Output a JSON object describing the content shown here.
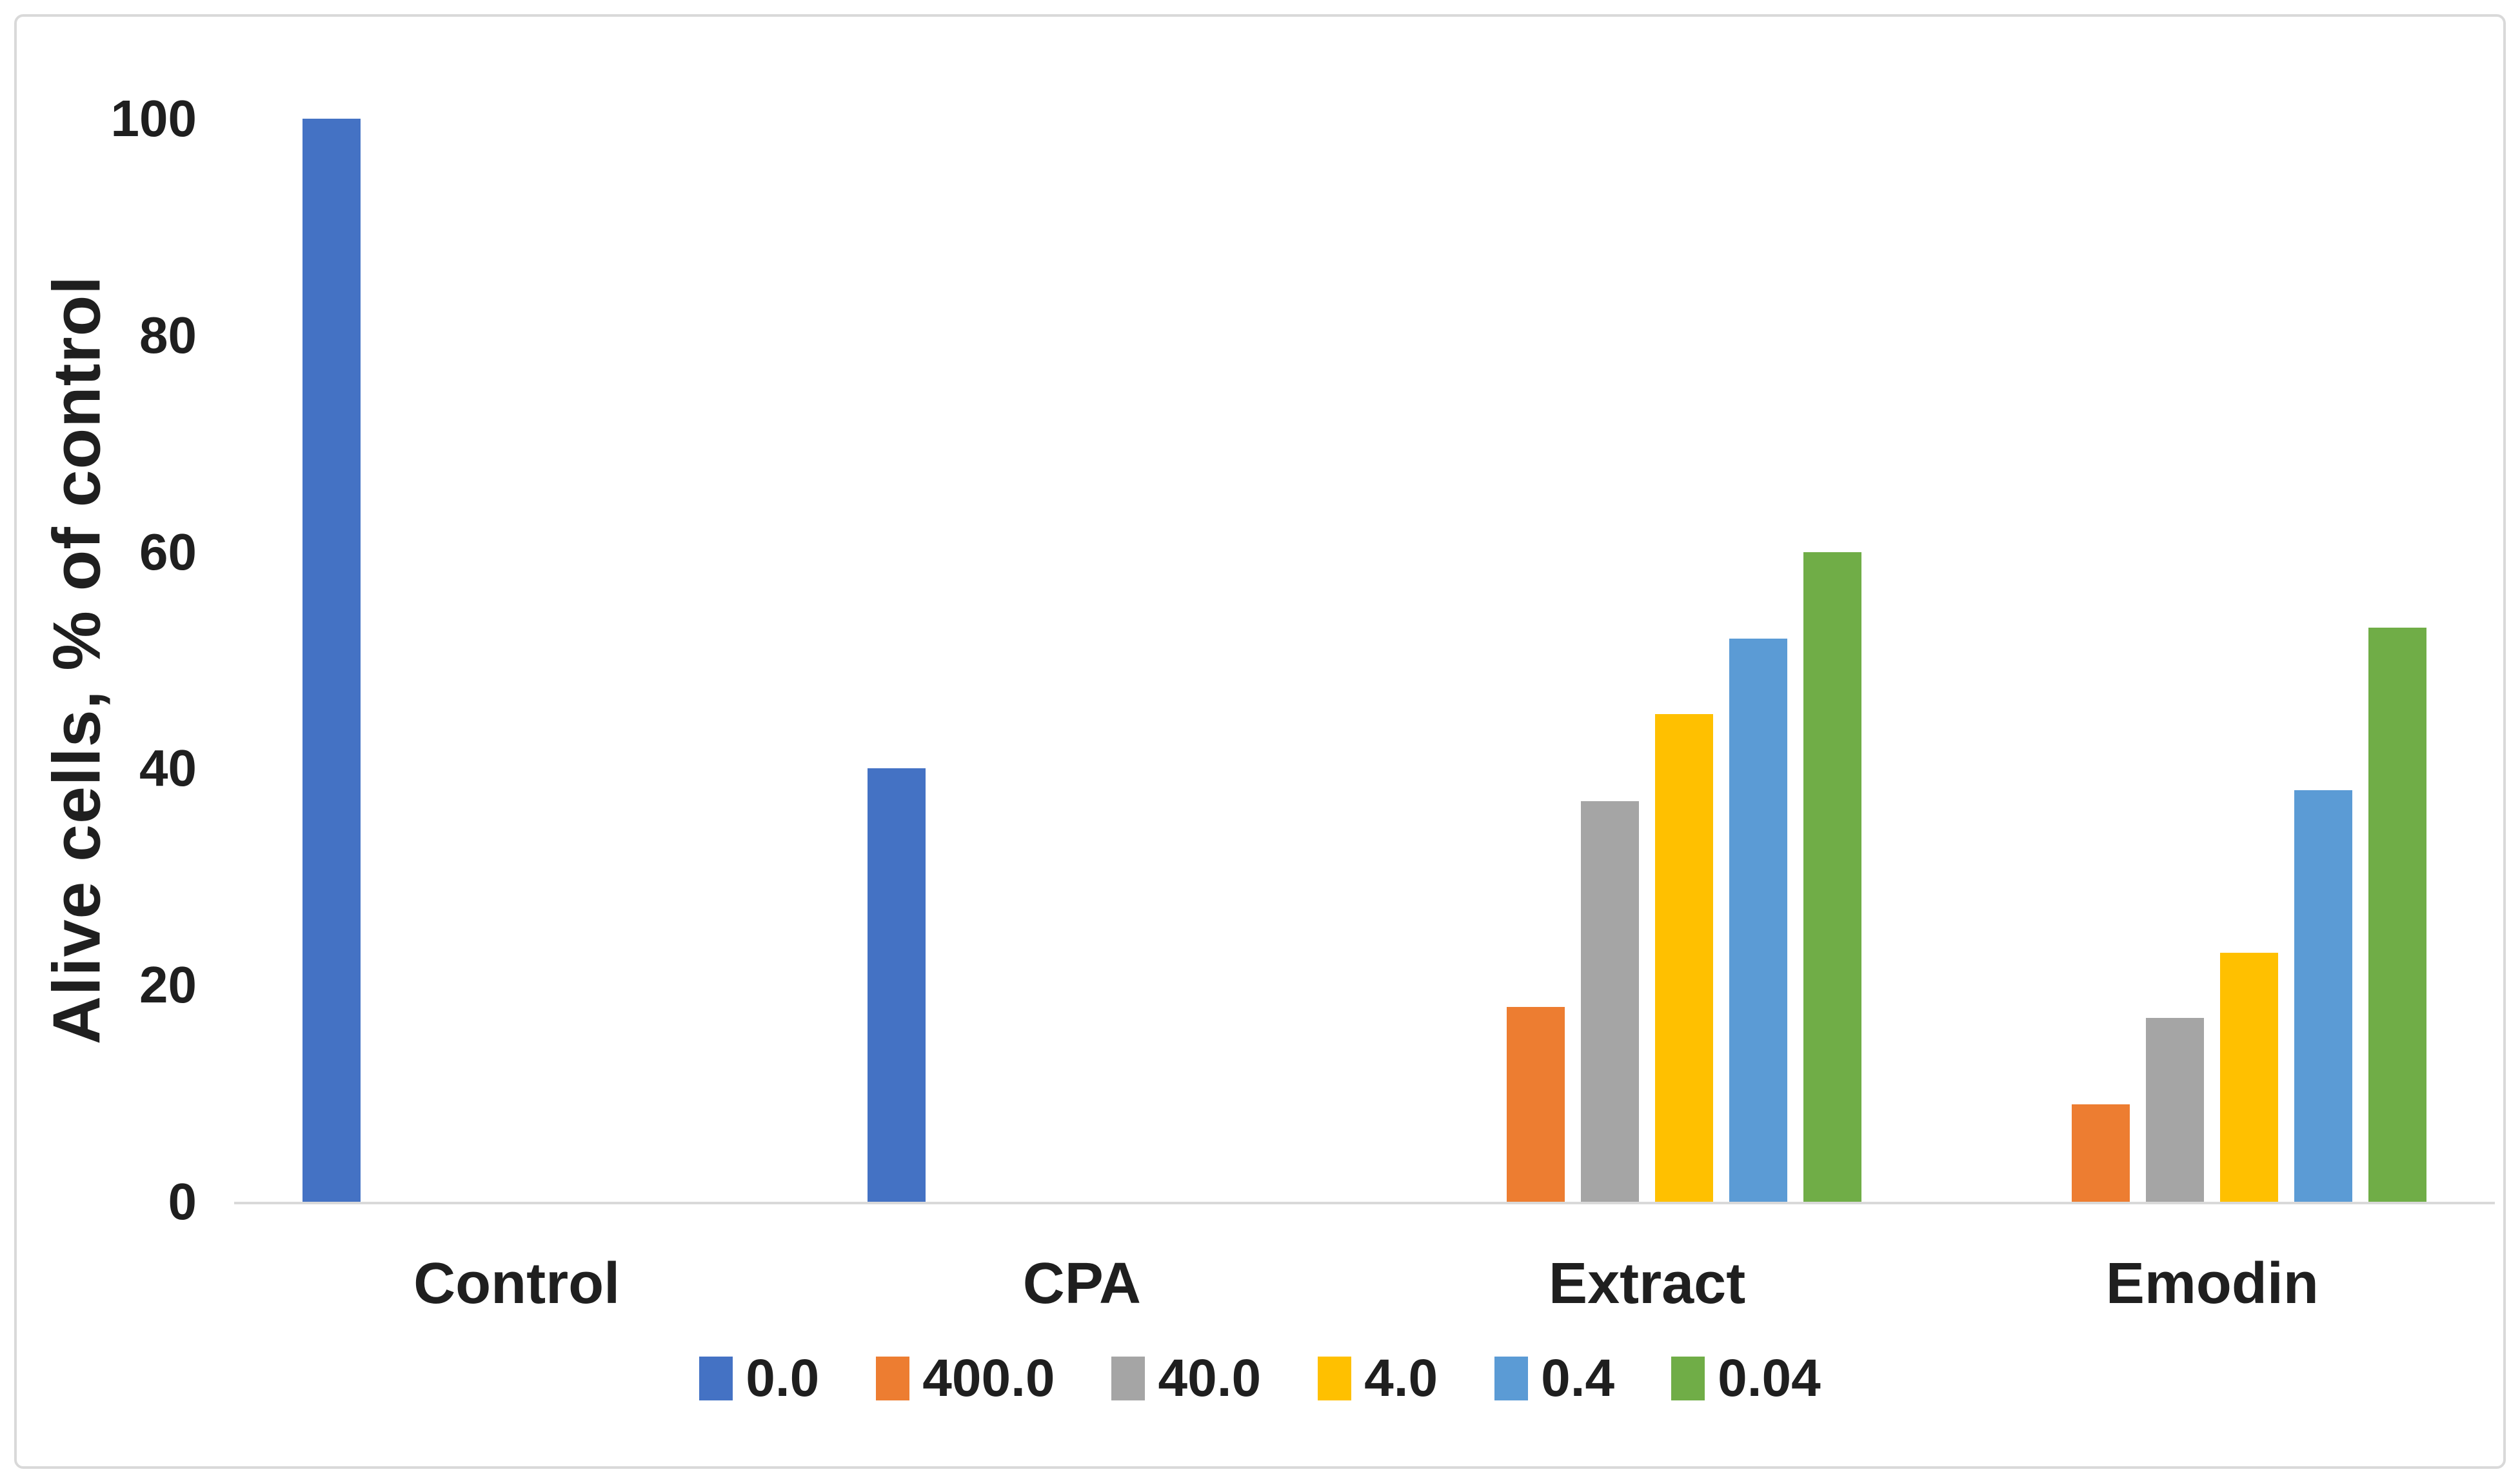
{
  "chart_data": {
    "type": "bar",
    "title": "",
    "ylabel": "Alive cells, % of control",
    "xlabel": "",
    "categories": [
      "Control",
      "CPA",
      "Extract",
      "Emodin"
    ],
    "series": [
      {
        "name": "0.0",
        "color": "#4472C4",
        "values": [
          100,
          40,
          0,
          0
        ]
      },
      {
        "name": "400.0",
        "color": "#ED7D31",
        "values": [
          0,
          0,
          18,
          9
        ]
      },
      {
        "name": "40.0",
        "color": "#A5A5A5",
        "values": [
          0,
          0,
          37,
          17
        ]
      },
      {
        "name": "4.0",
        "color": "#FFC000",
        "values": [
          0,
          0,
          45,
          23
        ]
      },
      {
        "name": "0.4",
        "color": "#5B9BD5",
        "values": [
          0,
          0,
          52,
          38
        ]
      },
      {
        "name": "0.04",
        "color": "#70AD47",
        "values": [
          0,
          0,
          60,
          53
        ]
      }
    ],
    "ylim": [
      0,
      100
    ],
    "yticks": [
      0,
      20,
      40,
      60,
      80,
      100
    ],
    "grid": false,
    "legend_position": "bottom"
  },
  "colors": {
    "background": "#FFFFFF",
    "frame": "#D9D9D9",
    "axis_line": "#D9D9D9",
    "text": "#1F1F1F"
  }
}
